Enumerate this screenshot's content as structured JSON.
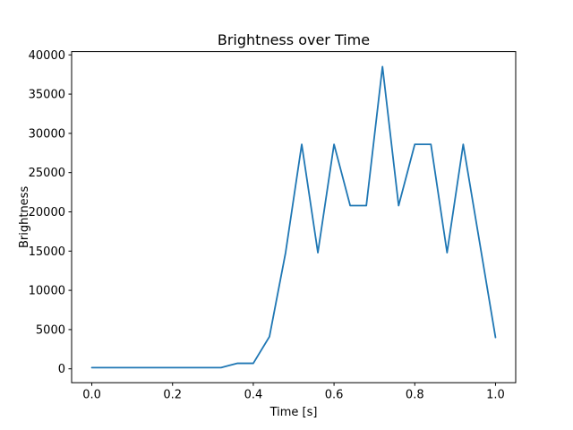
{
  "figure": {
    "background": "#ffffff"
  },
  "chart_data": {
    "type": "line",
    "title": "Brightness over Time",
    "xlabel": "Time [s]",
    "ylabel": "Brightness",
    "x": [
      0.0,
      0.04,
      0.08,
      0.12,
      0.16,
      0.2,
      0.24,
      0.28,
      0.32,
      0.36,
      0.4,
      0.44,
      0.48,
      0.52,
      0.56,
      0.6,
      0.64,
      0.68,
      0.72,
      0.76,
      0.8,
      0.84,
      0.88,
      0.92,
      0.96,
      1.0
    ],
    "y": [
      150,
      150,
      150,
      150,
      150,
      150,
      150,
      150,
      150,
      700,
      700,
      4100,
      14800,
      28600,
      14800,
      28600,
      20800,
      20800,
      38500,
      20800,
      28600,
      28600,
      14800,
      28600,
      16300,
      4000
    ],
    "series_name": "brightness",
    "line_color": "#1f77b4",
    "line_width": 1.8,
    "spine_color": "#000000",
    "xticks": [
      0.0,
      0.2,
      0.4,
      0.6,
      0.8,
      1.0
    ],
    "xtick_labels": [
      "0.0",
      "0.2",
      "0.4",
      "0.6",
      "0.8",
      "1.0"
    ],
    "yticks": [
      0,
      5000,
      10000,
      15000,
      20000,
      25000,
      30000,
      35000,
      40000
    ],
    "ytick_labels": [
      "0",
      "5000",
      "10000",
      "15000",
      "20000",
      "25000",
      "30000",
      "35000",
      "40000"
    ],
    "xlim": [
      -0.05,
      1.05
    ],
    "ylim": [
      -1767.5,
      40417.5
    ],
    "grid": false,
    "legend": null
  }
}
